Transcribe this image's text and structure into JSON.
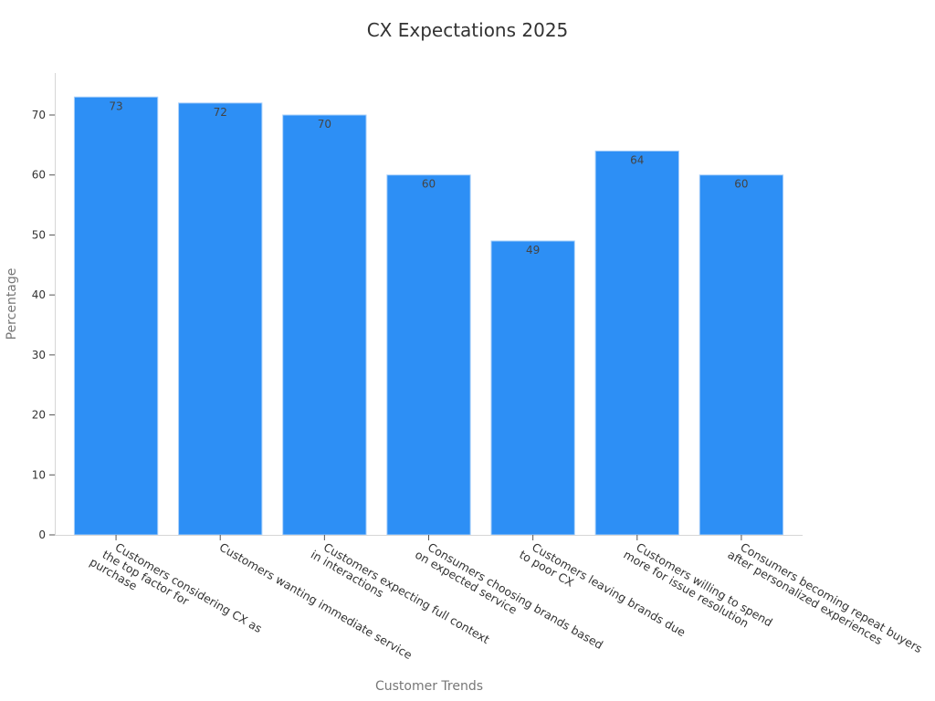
{
  "chart_data": {
    "type": "bar",
    "title": "CX Expectations 2025",
    "xlabel": "Customer Trends",
    "ylabel": "Percentage",
    "categories": [
      [
        "Customers considering CX as",
        "the top factor for",
        "purchase"
      ],
      [
        "Customers wanting immediate service"
      ],
      [
        "Customers expecting full context",
        "in interactions"
      ],
      [
        "Consumers choosing brands based",
        "on expected service"
      ],
      [
        "Customers leaving brands due",
        "to poor CX"
      ],
      [
        "Customers willing to spend",
        "more for issue resolution"
      ],
      [
        "Consumers becoming repeat buyers",
        "after personalized experiences"
      ]
    ],
    "values": [
      73,
      72,
      70,
      60,
      49,
      64,
      60
    ],
    "data_labels": [
      "73",
      "72",
      "70",
      "60",
      "49",
      "64",
      "60"
    ],
    "ylim": [
      0,
      77
    ],
    "yticks": [
      "0",
      "10",
      "20",
      "30",
      "40",
      "50",
      "60",
      "70"
    ],
    "grid": false,
    "bar_color": "#2d8ff5",
    "bar_edge_color": "#a9d0fa"
  }
}
